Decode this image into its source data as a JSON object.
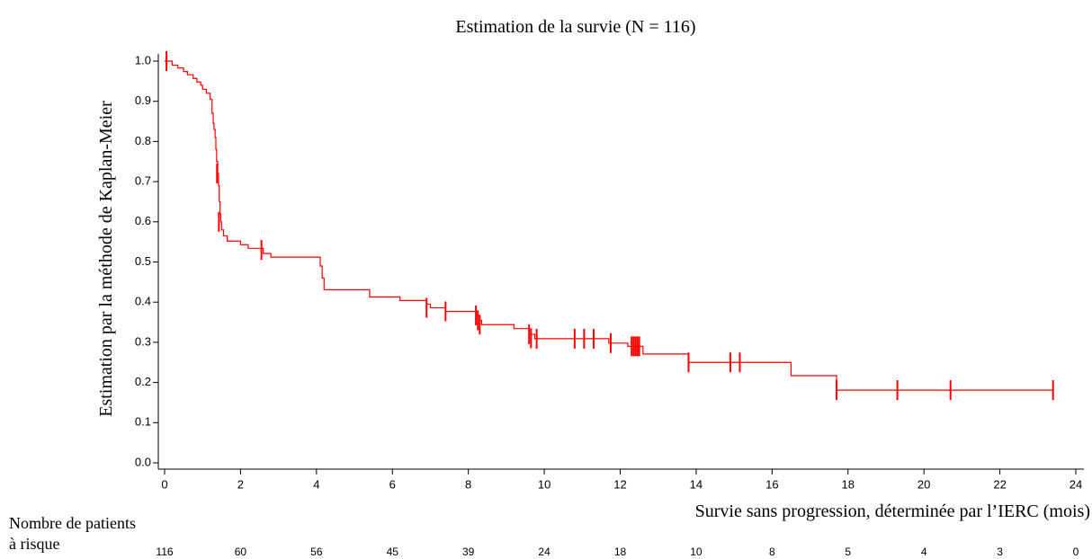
{
  "chart_data": {
    "type": "step",
    "title": "Estimation de la survie (N = 116)",
    "x_label": "Survie sans progression, déterminée par l’IERC (mois)",
    "y_label": "Estimation par la méthode de Kaplan-Meier",
    "xlim": [
      0,
      24
    ],
    "ylim": [
      0,
      1
    ],
    "xticks": [
      0,
      2,
      4,
      6,
      8,
      10,
      12,
      14,
      16,
      18,
      20,
      22,
      24
    ],
    "yticks": [
      {
        "value": 0,
        "label": "0.0"
      },
      0.1,
      0.2,
      0.3,
      0.4,
      0.5,
      0.6,
      0.7,
      0.8,
      0.9,
      {
        "value": 1,
        "label": "1.0"
      }
    ],
    "color": "#ff0000",
    "x": [
      0,
      0.2,
      0.35,
      0.5,
      0.6,
      0.75,
      0.85,
      0.95,
      1.0,
      1.1,
      1.2,
      1.25,
      1.28,
      1.3,
      1.33,
      1.35,
      1.37,
      1.4,
      1.42,
      1.44,
      1.46,
      1.48,
      1.5,
      1.55,
      1.65,
      2.0,
      2.2,
      2.6,
      2.8,
      4.1,
      4.15,
      4.2,
      5.4,
      6.2,
      6.9,
      7.0,
      7.4,
      8.2,
      8.3,
      8.35,
      9.2,
      9.6,
      9.75,
      11.7,
      12.2,
      12.6,
      13.8,
      16.5,
      17.7,
      23.4
    ],
    "values": [
      1.0,
      0.99,
      0.983,
      0.974,
      0.966,
      0.957,
      0.948,
      0.94,
      0.93,
      0.92,
      0.905,
      0.87,
      0.845,
      0.83,
      0.81,
      0.78,
      0.75,
      0.72,
      0.69,
      0.65,
      0.62,
      0.6,
      0.58,
      0.565,
      0.552,
      0.543,
      0.534,
      0.521,
      0.512,
      0.49,
      0.46,
      0.431,
      0.413,
      0.404,
      0.395,
      0.386,
      0.377,
      0.367,
      0.355,
      0.344,
      0.334,
      0.32,
      0.309,
      0.298,
      0.29,
      0.271,
      0.25,
      0.217,
      0.181,
      0.181
    ],
    "censored": {
      "x": [
        0.05,
        1.38,
        1.43,
        2.55,
        6.9,
        7.4,
        8.2,
        8.25,
        8.3,
        9.6,
        9.65,
        9.8,
        10.8,
        11.05,
        11.3,
        11.75,
        12.3,
        12.35,
        12.4,
        12.45,
        12.5,
        13.8,
        14.9,
        15.15,
        17.7,
        19.3,
        20.7,
        23.4
      ],
      "values": [
        1.0,
        0.72,
        0.6,
        0.53,
        0.386,
        0.377,
        0.367,
        0.355,
        0.344,
        0.32,
        0.31,
        0.309,
        0.309,
        0.309,
        0.309,
        0.298,
        0.29,
        0.29,
        0.29,
        0.29,
        0.29,
        0.25,
        0.25,
        0.25,
        0.181,
        0.181,
        0.181,
        0.181
      ]
    },
    "at_risk_label": [
      "Nombre de patients",
      "à risque"
    ],
    "at_risk": [
      116,
      60,
      56,
      45,
      39,
      24,
      18,
      10,
      8,
      5,
      4,
      3,
      0
    ]
  }
}
